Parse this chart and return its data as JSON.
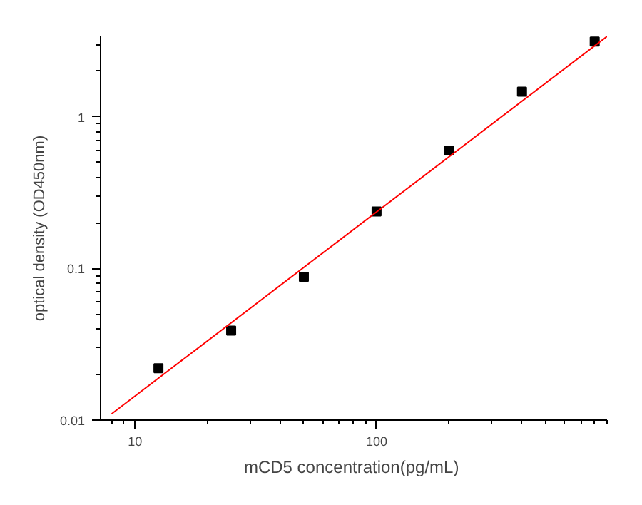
{
  "chart_data": {
    "type": "scatter",
    "xlabel": "mCD5  concentration(pg/mL)",
    "ylabel": "optical density (OD450nm)",
    "log": "xy",
    "xlim": [
      7.2,
      900
    ],
    "ylim": [
      0.01,
      3.4
    ],
    "xticks": [
      10,
      100
    ],
    "yticks": [
      0.01,
      0.1,
      1
    ],
    "grid": false,
    "series": [
      {
        "marker": "square",
        "color": "#000000",
        "x": [
          12.5,
          25,
          50,
          100,
          200,
          400,
          800
        ],
        "values": [
          0.022,
          0.039,
          0.088,
          0.238,
          0.6,
          1.47,
          3.14
        ]
      },
      {
        "type": "line",
        "color": "#ff0000",
        "x": [
          8,
          900
        ],
        "values": [
          0.011,
          3.4
        ],
        "line_style": "solid"
      }
    ]
  }
}
